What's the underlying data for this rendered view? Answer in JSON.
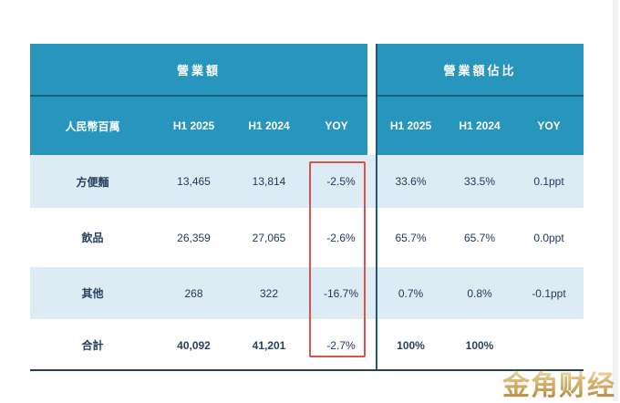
{
  "table": {
    "unit_label": "人民幣百萬",
    "group_headers": {
      "revenue": "營業額",
      "share": "營業額佔比"
    },
    "column_headers": {
      "left": [
        "H1 2025",
        "H1 2024",
        "YOY"
      ],
      "right": [
        "H1 2025",
        "H1 2024",
        "YOY"
      ]
    },
    "rows": [
      {
        "label": "方便麵",
        "rev_h1_2025": "13,465",
        "rev_h1_2024": "13,814",
        "rev_yoy": "-2.5%",
        "share_h1_2025": "33.6%",
        "share_h1_2024": "33.5%",
        "share_yoy": "0.1ppt"
      },
      {
        "label": "飲品",
        "rev_h1_2025": "26,359",
        "rev_h1_2024": "27,065",
        "rev_yoy": "-2.6%",
        "share_h1_2025": "65.7%",
        "share_h1_2024": "65.7%",
        "share_yoy": "0.0ppt"
      },
      {
        "label": "其他",
        "rev_h1_2025": "268",
        "rev_h1_2024": "322",
        "rev_yoy": "-16.7%",
        "share_h1_2025": "0.7%",
        "share_h1_2024": "0.8%",
        "share_yoy": "-0.1ppt"
      },
      {
        "label": "合計",
        "rev_h1_2025": "40,092",
        "rev_h1_2024": "41,201",
        "rev_yoy": "-2.7%",
        "share_h1_2025": "100%",
        "share_h1_2024": "100%",
        "share_yoy": ""
      }
    ]
  },
  "watermark": "金角财经",
  "colors": {
    "header_teal": "#2795bc",
    "header_divider": "#1d5e78",
    "row_light_blue": "#dcebf4",
    "row_white": "#ffffff",
    "text_navy": "#20395c",
    "highlight_red": "#d9544b",
    "table_bottom_border": "#28414f",
    "watermark_gold": "#cda95e"
  }
}
